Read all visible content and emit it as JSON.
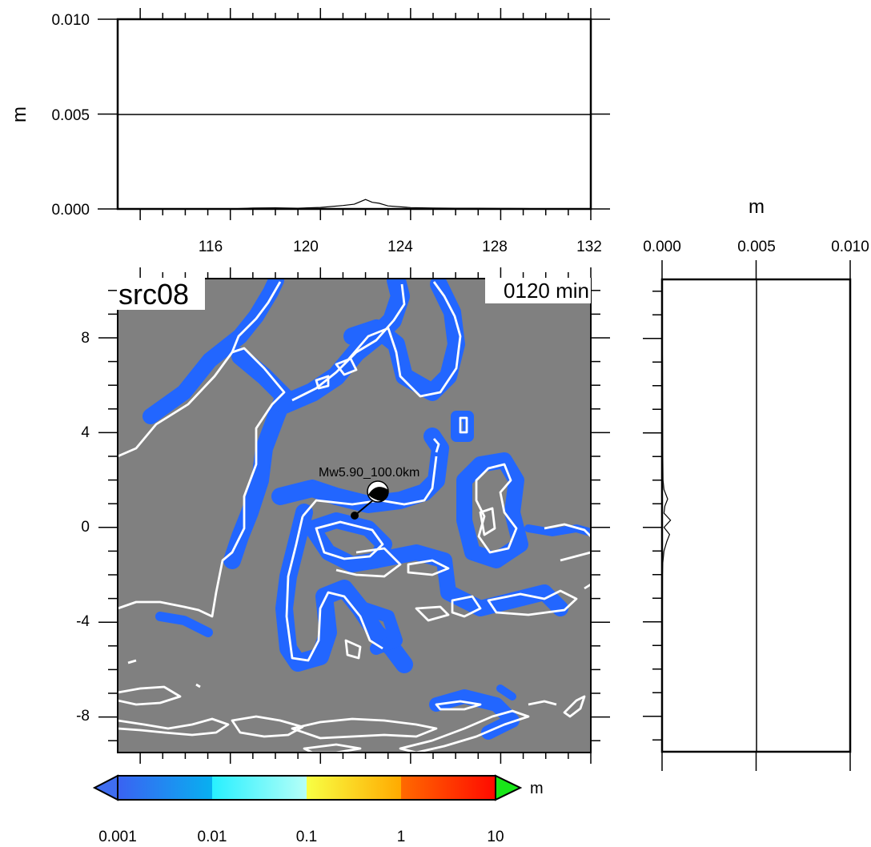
{
  "colors": {
    "land": "#808080",
    "shallow_band": "#2266ff",
    "coast": "#ffffff",
    "frame": "#000000"
  },
  "map": {
    "label": "src08",
    "time_label": "0120 min",
    "event_label": "Mw5.90_100.0km",
    "xlim": [
      111,
      132
    ],
    "ylim": [
      -9.5,
      10.5
    ],
    "x_ticks": [
      "116",
      "120",
      "124",
      "128",
      "132"
    ],
    "y_ticks": [
      "8",
      "4",
      "0",
      "-4",
      "-8"
    ]
  },
  "top_profile": {
    "ylabel": "m",
    "y_ticks": [
      "0.000",
      "0.005",
      "0.010"
    ],
    "ylim": [
      0,
      0.01
    ]
  },
  "right_profile": {
    "xlabel": "m",
    "x_ticks": [
      "0.000",
      "0.005",
      "0.010"
    ],
    "xlim": [
      0,
      0.01
    ]
  },
  "colorbar": {
    "unit": "m",
    "tick_labels": [
      "0.001",
      "0.01",
      "0.1",
      "1",
      "10"
    ],
    "colors": [
      "#3f6df0",
      "#1e9bf5",
      "#2ef3ff",
      "#aaffff",
      "#f6ff44",
      "#ffaa00",
      "#ff5a00",
      "#ff1a00",
      "#19e619"
    ]
  },
  "chart_data": [
    {
      "type": "line",
      "name": "longitude-profile",
      "x": [
        111,
        116,
        117,
        118,
        119,
        120,
        121,
        121.5,
        122,
        122.3,
        122.6,
        123,
        124,
        125,
        126,
        127,
        128,
        129,
        130,
        131,
        132
      ],
      "y": [
        0,
        0,
        5e-05,
        6e-05,
        4e-05,
        8e-05,
        0.00018,
        0.00025,
        0.0005,
        0.00035,
        0.0003,
        0.00016,
        7e-05,
        5e-05,
        4e-05,
        4e-05,
        3e-05,
        2e-05,
        1e-05,
        1e-05,
        0
      ],
      "xlim": [
        111,
        132
      ],
      "ylim": [
        0,
        0.01
      ],
      "ylabel": "m",
      "y_ticks": [
        0,
        0.005,
        0.01
      ],
      "x_ticks": [
        116,
        120,
        124,
        128,
        132
      ]
    },
    {
      "type": "line",
      "name": "latitude-profile",
      "lat": [
        -9.5,
        -2,
        -1.5,
        -1,
        -0.6,
        -0.3,
        0,
        0.3,
        0.6,
        0.9,
        1.2,
        1.6,
        2,
        3,
        5,
        7,
        8,
        10.5
      ],
      "amp": [
        0,
        2e-05,
        4e-05,
        0.0001,
        0.00025,
        0.0004,
        0.0001,
        0.00045,
        0.0001,
        0.00015,
        0.0003,
        0.0001,
        5e-05,
        4e-05,
        3e-05,
        2e-05,
        1e-05,
        0
      ],
      "ylim": [
        -9.5,
        10.5
      ],
      "xlim": [
        0,
        0.01
      ],
      "xlabel": "m",
      "x_ticks": [
        0,
        0.005,
        0.01
      ]
    },
    {
      "type": "heatmap",
      "name": "max-wave-height-map",
      "xlim": [
        111,
        132
      ],
      "ylim": [
        -9.5,
        10.5
      ],
      "x_ticks": [
        116,
        120,
        124,
        128,
        132
      ],
      "y_ticks": [
        8,
        4,
        0,
        -4,
        -8
      ],
      "title": "src08",
      "annotation": "0120 min",
      "epicenter": {
        "lon": 121.1,
        "lat": 0.4,
        "label": "Mw5.90_100.0km"
      },
      "colorbar_levels": [
        0.001,
        0.01,
        0.1,
        1,
        10
      ],
      "colorbar_unit": "m"
    }
  ]
}
